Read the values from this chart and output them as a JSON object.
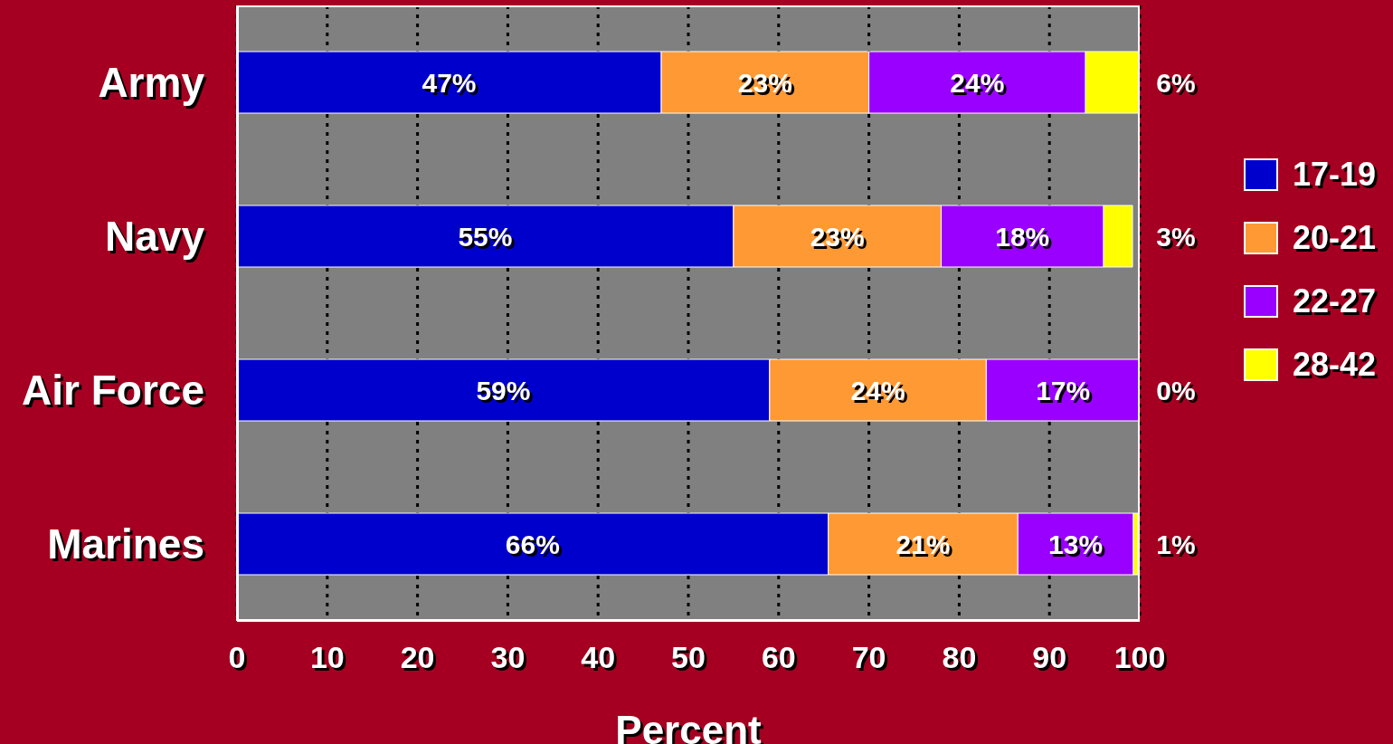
{
  "chart_data": {
    "type": "bar",
    "orientation": "horizontal",
    "stacked": true,
    "xlabel": "Percent",
    "categories": [
      "Army",
      "Navy",
      "Air Force",
      "Marines"
    ],
    "series": [
      {
        "name": "17-19",
        "color": "#0000cc",
        "values": [
          47,
          55,
          59,
          65.5
        ],
        "value_labels": [
          "47%",
          "55%",
          "59%",
          "66%"
        ]
      },
      {
        "name": "20-21",
        "color": "#ff9933",
        "values": [
          23,
          23,
          24,
          21
        ],
        "value_labels": [
          "23%",
          "23%",
          "24%",
          "21%"
        ]
      },
      {
        "name": "22-27",
        "color": "#9900ff",
        "values": [
          24,
          18,
          17,
          12.8
        ],
        "value_labels": [
          "24%",
          "18%",
          "17%",
          "13%"
        ]
      },
      {
        "name": "28-42",
        "color": "#ffff00",
        "values": [
          6,
          3.2,
          0,
          0.5
        ],
        "value_labels": [
          "6%",
          "3%",
          "0%",
          "1%"
        ]
      }
    ],
    "xlim": [
      0,
      100
    ],
    "xticks": [
      0,
      10,
      20,
      30,
      40,
      50,
      60,
      70,
      80,
      90,
      100
    ],
    "grid": "x",
    "legend": "right"
  }
}
